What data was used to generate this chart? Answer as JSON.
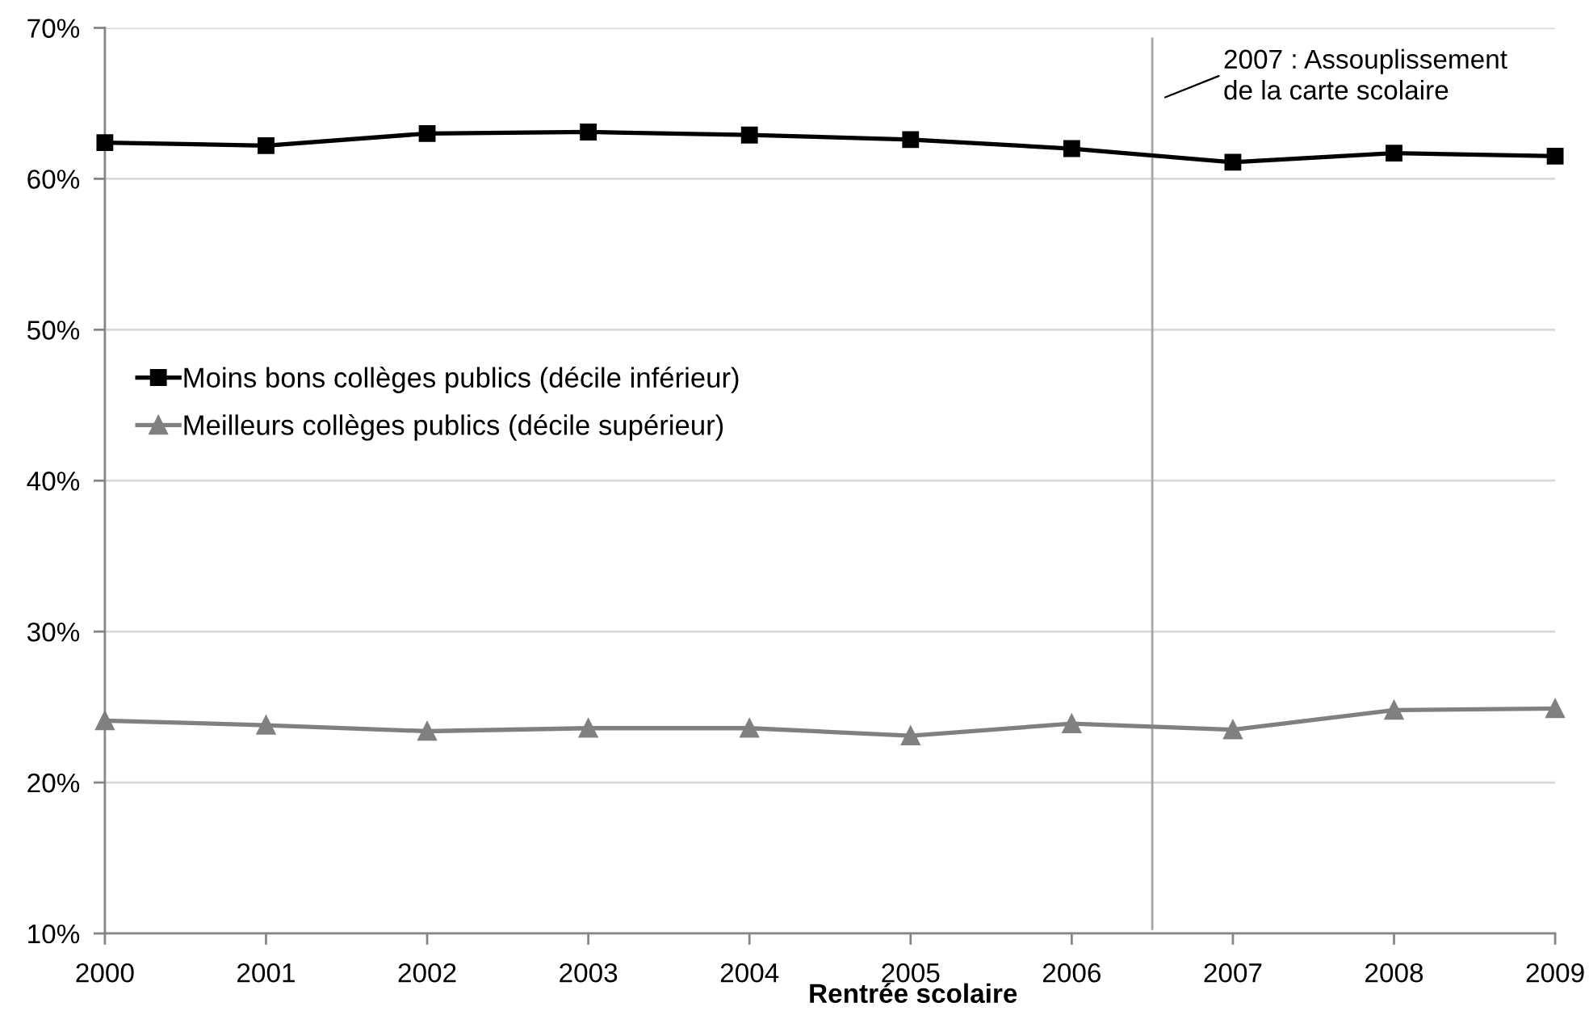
{
  "chart_data": {
    "type": "line",
    "x": [
      2000,
      2001,
      2002,
      2003,
      2004,
      2005,
      2006,
      2007,
      2008,
      2009
    ],
    "series": [
      {
        "name": "Moins bons collèges publics (décile inférieur)",
        "color": "#000000",
        "marker": "square",
        "values": [
          62.4,
          62.2,
          63.0,
          63.1,
          62.9,
          62.6,
          62.0,
          61.1,
          61.7,
          61.5
        ]
      },
      {
        "name": "Meilleurs collèges publics (décile supérieur)",
        "color": "#808080",
        "marker": "triangle",
        "values": [
          24.1,
          23.8,
          23.4,
          23.6,
          23.6,
          23.1,
          23.9,
          23.5,
          24.8,
          24.9
        ]
      }
    ],
    "xlabel": "Rentrée scolaire",
    "xlim": [
      2000,
      2009
    ],
    "xticks": [
      2000,
      2001,
      2002,
      2003,
      2004,
      2005,
      2006,
      2007,
      2008,
      2009
    ],
    "ylim": [
      10,
      70
    ],
    "yticks": [
      {
        "value": 10,
        "label": "10%"
      },
      {
        "value": 20,
        "label": "20%"
      },
      {
        "value": 30,
        "label": "30%"
      },
      {
        "value": 40,
        "label": "40%"
      },
      {
        "value": 50,
        "label": "50%"
      },
      {
        "value": 60,
        "label": "60%"
      },
      {
        "value": 70,
        "label": "70%"
      }
    ],
    "ref_lines": [
      {
        "axis": "x",
        "value": 2006.5,
        "label": "2007 : Assouplissement\nde la carte scolaire",
        "color": "#a6a6a6"
      }
    ],
    "grid": "y",
    "legend": "left",
    "line_style": "solid"
  }
}
